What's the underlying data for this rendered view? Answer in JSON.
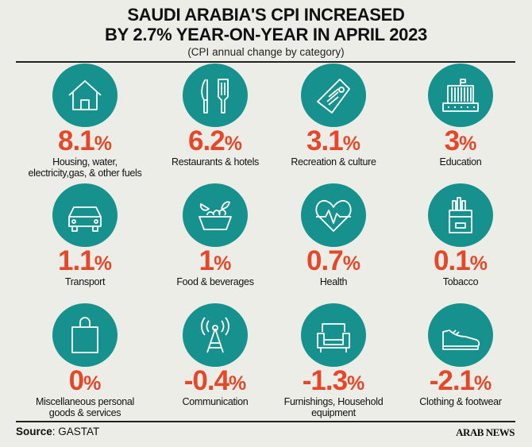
{
  "header": {
    "title_line1": "SAUDI ARABIA'S CPI INCREASED",
    "title_line2": "BY 2.7% YEAR-ON-YEAR IN APRIL 2023",
    "subtitle": "(CPI annual change by category)"
  },
  "colors": {
    "circle": "#17918d",
    "value": "#e5472a",
    "background": "#ecede6"
  },
  "categories": [
    {
      "value": "8.1",
      "unit": "%",
      "label": "Housing, water, electricity,gas, & other fuels",
      "icon": "house-icon"
    },
    {
      "value": "6.2",
      "unit": "%",
      "label": "Restaurants & hotels",
      "icon": "knife-spatula-icon"
    },
    {
      "value": "3.1",
      "unit": "%",
      "label": "Recreation & culture",
      "icon": "ticket-tag-icon"
    },
    {
      "value": "3",
      "unit": "%",
      "label": "Education",
      "icon": "school-building-icon"
    },
    {
      "value": "1.1",
      "unit": "%",
      "label": "Transport",
      "icon": "car-icon"
    },
    {
      "value": "1",
      "unit": "%",
      "label": "Food & beverages",
      "icon": "food-bowl-icon"
    },
    {
      "value": "0.7",
      "unit": "%",
      "label": "Health",
      "icon": "heartbeat-icon"
    },
    {
      "value": "0.1",
      "unit": "%",
      "label": "Tobacco",
      "icon": "cigarette-pack-icon"
    },
    {
      "value": "0",
      "unit": "%",
      "label": "Miscellaneous personal goods & services",
      "icon": "shopping-bag-icon"
    },
    {
      "value": "-0.4",
      "unit": "%",
      "label": "Communication",
      "icon": "antenna-tower-icon"
    },
    {
      "value": "-1.3",
      "unit": "%",
      "label": "Furnishings, Household equipment",
      "icon": "armchair-icon"
    },
    {
      "value": "-2.1",
      "unit": "%",
      "label": "Clothing & footwear",
      "icon": "shoe-icon"
    }
  ],
  "footer": {
    "source_label": "Source",
    "source_value": ": GASTAT",
    "logo": "ARAB NEWS"
  },
  "chart_data": {
    "type": "table",
    "title": "SAUDI ARABIA'S CPI INCREASED BY 2.7% YEAR-ON-YEAR IN APRIL 2023",
    "subtitle": "(CPI annual change by category)",
    "categories": [
      "Housing, water, electricity,gas, & other fuels",
      "Restaurants & hotels",
      "Recreation & culture",
      "Education",
      "Transport",
      "Food & beverages",
      "Health",
      "Tobacco",
      "Miscellaneous personal goods & services",
      "Communication",
      "Furnishings, Household equipment",
      "Clothing & footwear"
    ],
    "values": [
      8.1,
      6.2,
      3.1,
      3,
      1.1,
      1,
      0.7,
      0.1,
      0,
      -0.4,
      -1.3,
      -2.1
    ],
    "unit": "%"
  }
}
